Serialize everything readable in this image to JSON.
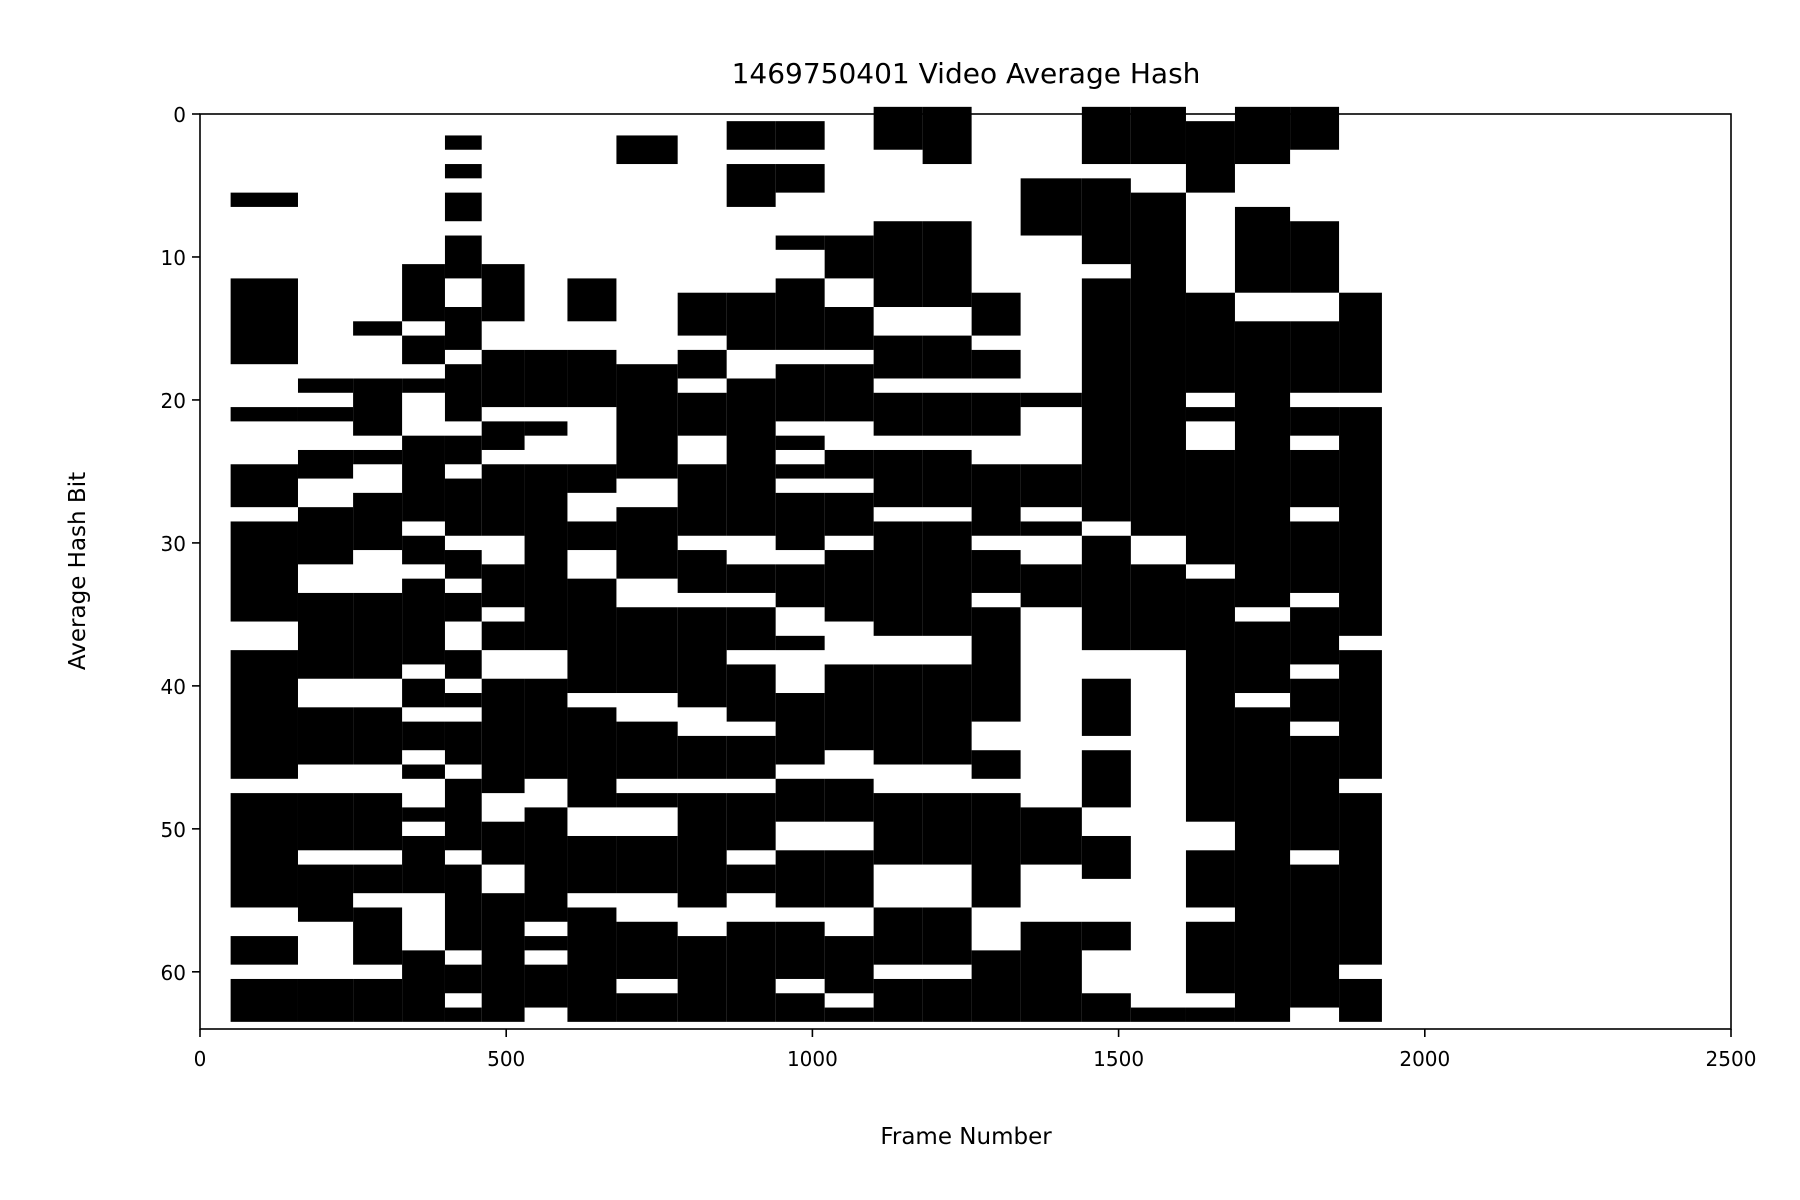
{
  "chart_data": {
    "type": "heatmap",
    "title": "1469750401 Video Average Hash",
    "xlabel": "Frame Number",
    "ylabel": "Average Hash Bit",
    "xlim": [
      0,
      2500
    ],
    "ylim": [
      64,
      0
    ],
    "x_ticks": [
      0,
      500,
      1000,
      1500,
      2000,
      2500
    ],
    "y_ticks": [
      0,
      10,
      20,
      30,
      40,
      50,
      60
    ],
    "colormap": {
      "0": "#ffffff",
      "1": "#000000"
    },
    "grid": false,
    "legend": "none",
    "n_bits": 64,
    "frame_range_with_data": [
      50,
      1930
    ],
    "segments": [
      {
        "start": 50,
        "end": 160,
        "bits": "0000001000001111110001000111011111110011111111101111111100110111"
      },
      {
        "start": 160,
        "end": 250,
        "bits": "0000000000000000000101001100111100111111001111001111011110000111"
      },
      {
        "start": 250,
        "end": 330,
        "bits": "0000000000000001000111101001111000111111001111001111011011110111"
      },
      {
        "start": 330,
        "end": 400,
        "bits": "0000000000011110110100011111101101111110110110100101111000011111"
      },
      {
        "start": 400,
        "end": 460,
        "bits": "0010101101110011101111011011110110110011010111011111011111101101"
      },
      {
        "start": 460,
        "end": 530,
        "bits": "0000000000011110011110110111110011101100111111110011100111111111"
      },
      {
        "start": 530,
        "end": 600,
        "bits": "0000000000000000011110100111111111111100111111100111111110101110"
      },
      {
        "start": 600,
        "end": 680,
        "bits": "0000000000001110011110000110011001111111101111111001111011111111"
      },
      {
        "start": 680,
        "end": 780,
        "bits": "0011000000000000001111111100111110011111100111101001111001111011"
      },
      {
        "start": 780,
        "end": 860,
        "bits": "0000000000000111011011100111110111011111110011101111111100111111"
      },
      {
        "start": 860,
        "end": 940,
        "bits": "0110111000000111100111111111110011011101111011101111011001111111"
      },
      {
        "start": 940,
        "end": 1020,
        "bits": "0110110001001111101111010101111011100100011111011100111101111011"
      },
      {
        "start": 1020,
        "end": 1100,
        "bits": "0000000001110011101111001101110111110001111110011100111100111101"
      },
      {
        "start": 1100,
        "end": 1180,
        "bits": "1110000011111100111011101111011111111001111111001111100011110111"
      },
      {
        "start": 1180,
        "end": 1260,
        "bits": "1111000011111100111011101111011111111001111111001111100011110111"
      },
      {
        "start": 1260,
        "end": 1340,
        "bits": "0000000000000111011011100111110111011111111001101111111100011111"
      },
      {
        "start": 1340,
        "end": 1440,
        "bits": "0000011110000000000010000111010011100000000000000111100001111111"
      },
      {
        "start": 1440,
        "end": 1520,
        "bits": "1111011111101111111111111111101111111100111101111001110001100011"
      },
      {
        "start": 1520,
        "end": 1610,
        "bits": "1111001111111111111111111111110011111100000000000000000000000001"
      },
      {
        "start": 1610,
        "end": 1690,
        "bits": "0111110000000111111101001111111101111111111111111100111101111101"
      },
      {
        "start": 1690,
        "end": 1780,
        "bits": "1111000111111001111111111111111111101111101111111111111111111111"
      },
      {
        "start": 1780,
        "end": 1860,
        "bits": "1110000011111001111101101111011111011110111011111111011111111110"
      },
      {
        "start": 1860,
        "end": 1930,
        "bits": "0000000000000111111101111111111111111011111111101111111111110111"
      }
    ]
  }
}
